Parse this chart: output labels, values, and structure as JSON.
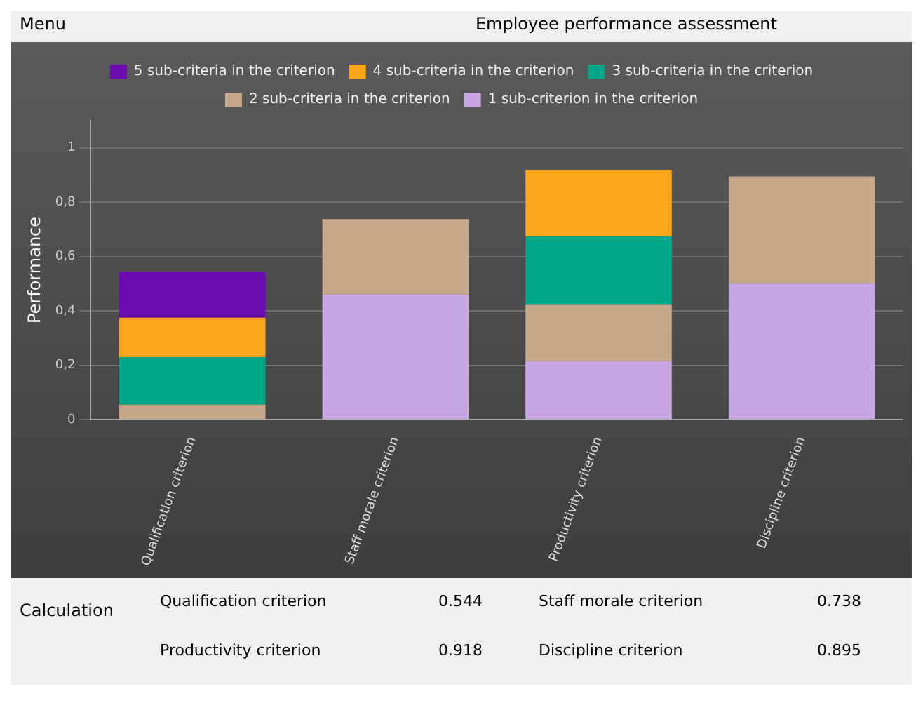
{
  "chart_data": {
    "type": "bar",
    "title": "Employee performance assessment",
    "ylabel": "Performance",
    "categories": [
      "Qualification criterion",
      "Staff morale criterion",
      "Productivity criterion",
      "Discipline criterion"
    ],
    "stacked": true,
    "series": [
      {
        "name": "1 sub-criterion in the criterion",
        "color": "#c8a8e4",
        "values": [
          0,
          0.46,
          0.215,
          0.5
        ]
      },
      {
        "name": "2 sub-criteria in the criterion",
        "color": "#c8a88a",
        "values": [
          0.055,
          0.278,
          0.207,
          0.395
        ]
      },
      {
        "name": "3 sub-criteria in the criterion",
        "color": "#00a88a",
        "values": [
          0.175,
          0,
          0.251,
          0
        ]
      },
      {
        "name": "4 sub-criteria in the criterion",
        "color": "#f9a61a",
        "values": [
          0.145,
          0,
          0.245,
          0
        ]
      },
      {
        "name": "5 sub-criteria in the criterion",
        "color": "#6c0bb0",
        "values": [
          0.169,
          0,
          0,
          0
        ]
      }
    ],
    "ylim": [
      0,
      1.1
    ],
    "yticks": [
      {
        "value": 0,
        "label": "0"
      },
      {
        "value": 0.2,
        "label": "0,2"
      },
      {
        "value": 0.4,
        "label": "0,4"
      },
      {
        "value": 0.6,
        "label": "0,6"
      },
      {
        "value": 0.8,
        "label": "0,8"
      },
      {
        "value": 1,
        "label": "1"
      }
    ],
    "grid": "y",
    "legend": "top",
    "annotations": [
      "Menu",
      "Calculation",
      "Qualification criterion",
      "0.544",
      "Staff morale criterion",
      "0.738",
      "Productivity criterion",
      "0.918",
      "Discipline criterion",
      "0.895"
    ]
  }
}
